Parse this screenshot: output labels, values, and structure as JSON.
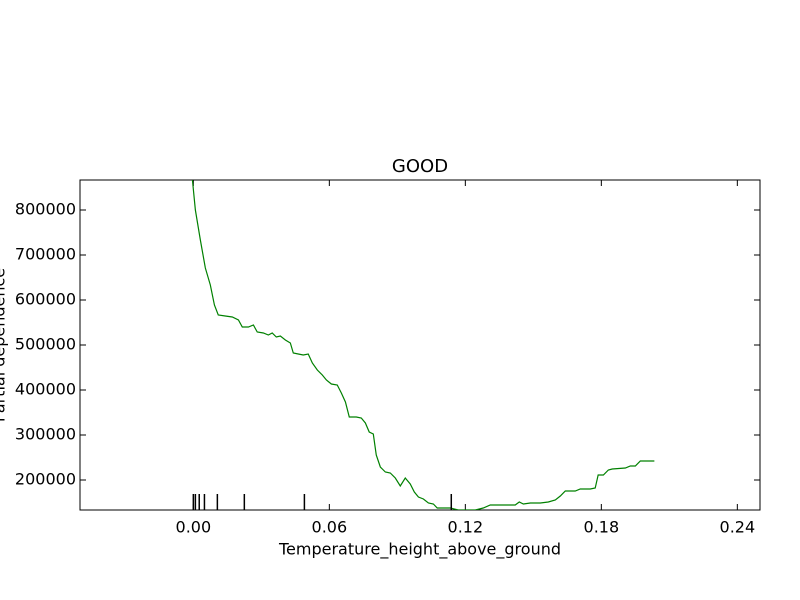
{
  "chart_data": {
    "type": "line",
    "title": "GOOD",
    "x_label": "Temperature_height_above_ground",
    "y_label": "Partial dependence",
    "series": [
      {
        "color": "#008000",
        "x": [
          -0.0004,
          0.0009,
          0.0031,
          0.0053,
          0.0075,
          0.0093,
          0.011,
          0.0141,
          0.0172,
          0.0199,
          0.0216,
          0.0243,
          0.0265,
          0.0282,
          0.0309,
          0.0331,
          0.0348,
          0.0366,
          0.0384,
          0.0406,
          0.0428,
          0.0441,
          0.0463,
          0.0485,
          0.0507,
          0.0525,
          0.0547,
          0.0569,
          0.0587,
          0.0609,
          0.0635,
          0.0653,
          0.0671,
          0.0688,
          0.0719,
          0.0741,
          0.0759,
          0.0776,
          0.0794,
          0.0807,
          0.0825,
          0.0847,
          0.0869,
          0.0891,
          0.0913,
          0.0935,
          0.0957,
          0.0975,
          0.0993,
          0.1015,
          0.1037,
          0.1059,
          0.1076,
          0.1134,
          0.1169,
          0.1244,
          0.1279,
          0.131,
          0.1376,
          0.142,
          0.1438,
          0.1456,
          0.1487,
          0.1531,
          0.1566,
          0.1597,
          0.1619,
          0.1641,
          0.1685,
          0.1707,
          0.1751,
          0.1773,
          0.1786,
          0.1809,
          0.1831,
          0.1848,
          0.1906,
          0.1928,
          0.195,
          0.1972,
          0.2034
        ],
        "values": [
          866667,
          800000,
          733333,
          671111,
          633333,
          588889,
          566667,
          564444,
          562222,
          555556,
          540000,
          540000,
          544444,
          528889,
          526667,
          522222,
          526667,
          517778,
          520000,
          511111,
          504444,
          482222,
          480000,
          477778,
          480000,
          460000,
          444444,
          433333,
          422222,
          413333,
          411111,
          393333,
          373333,
          340000,
          340000,
          337778,
          326667,
          306667,
          302222,
          255556,
          228889,
          217778,
          215556,
          204444,
          186667,
          204444,
          191111,
          173333,
          162222,
          157778,
          148889,
          146667,
          137778,
          137778,
          133333,
          133333,
          137778,
          144444,
          144444,
          144444,
          151111,
          146667,
          148889,
          148889,
          151111,
          155556,
          164444,
          175556,
          175556,
          180000,
          180000,
          182222,
          211111,
          211111,
          222222,
          224444,
          226667,
          231111,
          231111,
          242222,
          242222
        ]
      }
    ],
    "deciles": [
      0,
      0.0009,
      0.0026,
      0.0049,
      0.0106,
      0.0225,
      0.049,
      0.1138
    ],
    "xlim": [
      -0.05,
      0.25
    ],
    "xticks": [
      {
        "value": 0,
        "label": "0.00"
      },
      0.06,
      0.12,
      0.18,
      0.24
    ],
    "ylim": [
      133333,
      866667
    ],
    "yticks": [
      200000,
      300000,
      400000,
      500000,
      600000,
      700000,
      800000
    ]
  }
}
